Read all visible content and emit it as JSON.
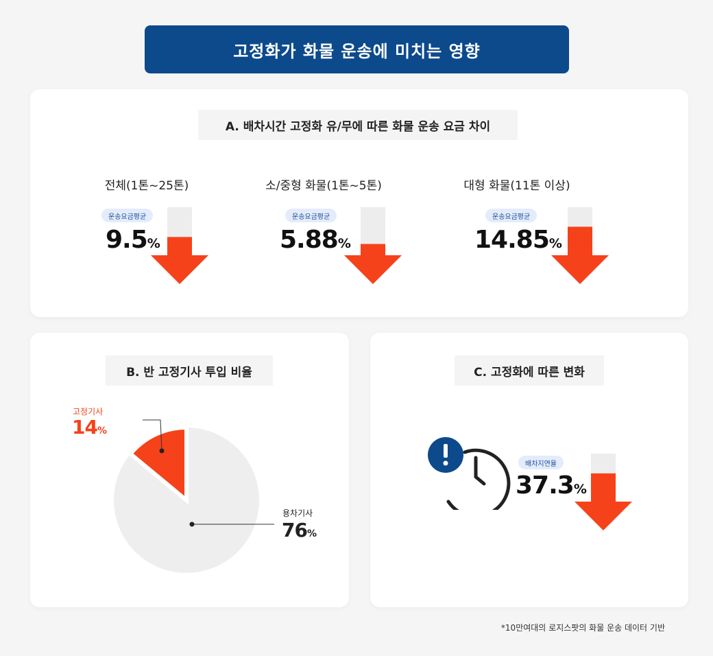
{
  "title": "고정화가 화물 운송에 미치는 영향",
  "section_a": {
    "title": "A. 배차시간 고정화 유/무에 따른 화물 운송 요금 차이",
    "badge": "운송요금평균",
    "items": [
      {
        "category": "전체(1톤~25톤)",
        "value": "9.5",
        "unit": "%"
      },
      {
        "category": "소/중형 화물(1톤~5톤)",
        "value": "5.88",
        "unit": "%"
      },
      {
        "category": "대형 화물(11톤 이상)",
        "value": "14.85",
        "unit": "%"
      }
    ]
  },
  "section_b": {
    "title": "B. 반 고정기사 투입 비율",
    "fixed_label": "고정기사",
    "fixed_value": "14",
    "chartered_label": "용차기사",
    "chartered_value": "76",
    "unit": "%"
  },
  "section_c": {
    "title": "C. 고정화에 따른 변화",
    "badge": "배차지연율",
    "value": "37.3",
    "unit": "%"
  },
  "footnote": "*10만여대의 로지스팟의 화물 운송 데이터 기반",
  "colors": {
    "navy": "#0d4a8c",
    "accent": "#f5421a",
    "gray_bar": "#ededed",
    "pie_gray": "#eeeeee"
  },
  "chart_data": [
    {
      "type": "bar",
      "title": "A. 배차시간 고정화 유/무에 따른 화물 운송 요금 차이",
      "categories": [
        "전체(1톤~25톤)",
        "소/중형 화물(1톤~5톤)",
        "대형 화물(11톤 이상)"
      ],
      "values": [
        9.5,
        5.88,
        14.85
      ],
      "ylabel": "운송요금평균"
    },
    {
      "type": "pie",
      "title": "B. 반 고정기사 투입 비율",
      "categories": [
        "고정기사",
        "용차기사"
      ],
      "values": [
        14,
        76
      ]
    },
    {
      "type": "bar",
      "title": "C. 고정화에 따른 변화",
      "categories": [
        "배차지연율"
      ],
      "values": [
        37.3
      ]
    }
  ]
}
